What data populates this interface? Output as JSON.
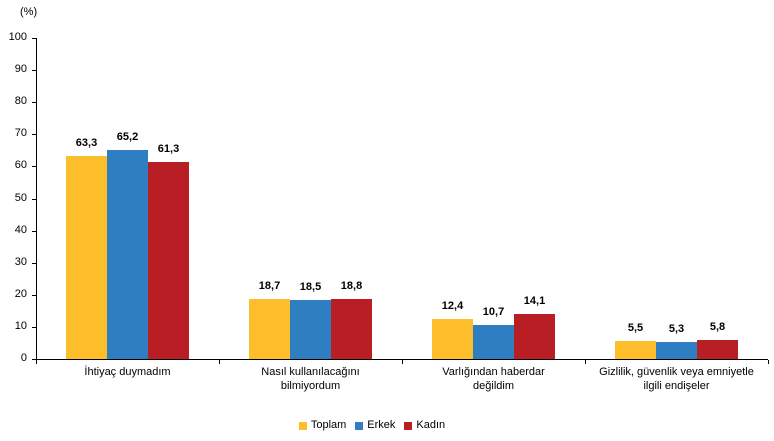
{
  "chart_data": {
    "type": "bar",
    "unit_label": "(%)",
    "categories": [
      "İhtiyaç duymadım",
      "Nasıl kullanılacağını bilmiyordum",
      "Varlığından haberdar değildim",
      "Gizlilik, güvenlik veya emniyetle ilgili endişeler"
    ],
    "category_lines": [
      [
        "İhtiyaç duymadım"
      ],
      [
        "Nasıl kullanılacağını",
        "bilmiyordum"
      ],
      [
        "Varlığından haberdar",
        "değildim"
      ],
      [
        "Gizlilik, güvenlik veya emniyetle",
        "ilgili endişeler"
      ]
    ],
    "series": [
      {
        "name": "Toplam",
        "slug": "toplam",
        "color": "#FCBF2B",
        "values": [
          63.3,
          18.7,
          12.4,
          5.5
        ],
        "labels": [
          "63,3",
          "18,7",
          "12,4",
          "5,5"
        ]
      },
      {
        "name": "Erkek",
        "slug": "erkek",
        "color": "#2F7EC1",
        "values": [
          65.2,
          18.5,
          10.7,
          5.3
        ],
        "labels": [
          "65,2",
          "18,5",
          "10,7",
          "5,3"
        ]
      },
      {
        "name": "Kadın",
        "slug": "kadin",
        "color": "#B81E23",
        "values": [
          61.3,
          18.8,
          14.1,
          5.8
        ],
        "labels": [
          "61,3",
          "18,8",
          "14,1",
          "5,8"
        ]
      }
    ],
    "ylim": [
      0,
      100
    ],
    "yticks": [
      0,
      10,
      20,
      30,
      40,
      50,
      60,
      70,
      80,
      90,
      100
    ],
    "grid": false,
    "legend_position": "bottom",
    "axis_color": "#000000",
    "background_color": "#ffffff"
  }
}
